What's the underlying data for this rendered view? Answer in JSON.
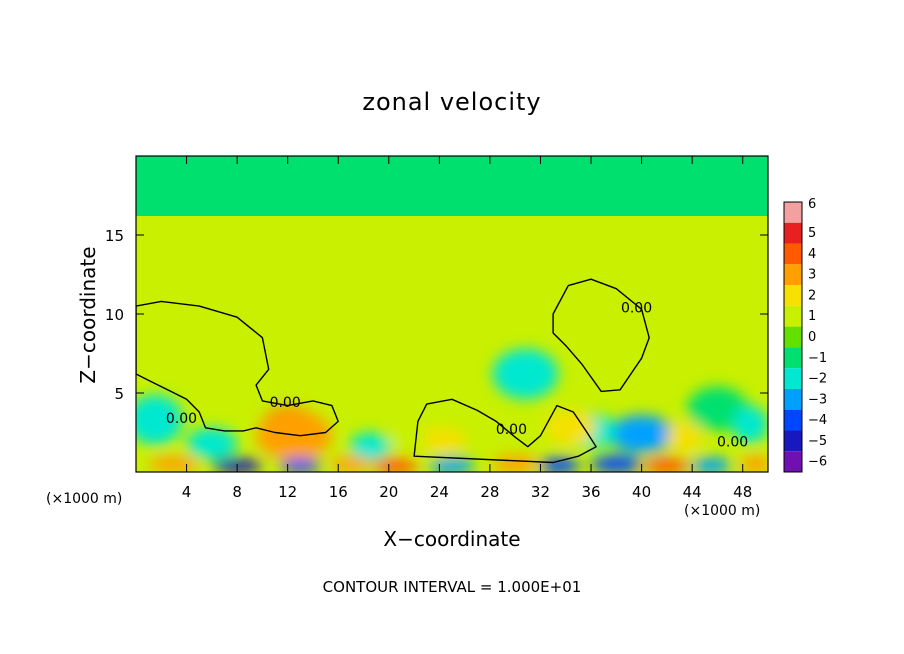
{
  "chart_data": {
    "type": "heatmap",
    "title": "zonal velocity",
    "xlabel": "X−coordinate",
    "ylabel": "Z−coordinate",
    "x_units": "(×1000 m)",
    "xlim": [
      0,
      50
    ],
    "ylim": [
      0,
      20
    ],
    "x_ticks": [
      4,
      8,
      12,
      16,
      20,
      24,
      28,
      32,
      36,
      40,
      44,
      48
    ],
    "y_ticks": [
      5,
      10,
      15
    ],
    "footer": "CONTOUR INTERVAL = 1.000E+01",
    "colorbar": {
      "levels": [
        6,
        5,
        4,
        3,
        2,
        1,
        0,
        -1,
        -2,
        -3,
        -4,
        -5,
        -6
      ],
      "labels": [
        "6",
        "5",
        "4",
        "3",
        "2",
        "1",
        "0",
        "−1",
        "−2",
        "−3",
        "−4",
        "−5",
        "−6"
      ],
      "colors": [
        "#f2a0a0",
        "#e82020",
        "#ff5a00",
        "#ffa000",
        "#f5e000",
        "#c8f000",
        "#64e000",
        "#00e06e",
        "#00e8d0",
        "#00a0ff",
        "#0046ff",
        "#1818c0",
        "#7010b0"
      ]
    },
    "contour_labels": [
      {
        "text": "0.00",
        "x": 3.6,
        "y": 3.1
      },
      {
        "text": "0.00",
        "x": 11.8,
        "y": 4.1
      },
      {
        "text": "0.00",
        "x": 29.7,
        "y": 2.4
      },
      {
        "text": "0.00",
        "x": 39.6,
        "y": 10.1
      },
      {
        "text": "0.00",
        "x": 47.2,
        "y": 1.6
      }
    ],
    "features": [
      {
        "x": 12.2,
        "y": 3.0,
        "v": 4.2,
        "rx": 2.2,
        "ry": 1.1
      },
      {
        "x": 12.5,
        "y": 2.3,
        "v": 2.5,
        "rx": 3.0,
        "ry": 1.6
      },
      {
        "x": 1.5,
        "y": 3.3,
        "v": -2.2,
        "rx": 2.2,
        "ry": 1.6
      },
      {
        "x": 6.0,
        "y": 1.8,
        "v": -2.5,
        "rx": 2.0,
        "ry": 1.0
      },
      {
        "x": 30.8,
        "y": 6.2,
        "v": -1.6,
        "rx": 2.6,
        "ry": 1.6
      },
      {
        "x": 40.0,
        "y": 2.4,
        "v": -2.6,
        "rx": 2.6,
        "ry": 1.2
      },
      {
        "x": 36.0,
        "y": 2.6,
        "v": -2.3,
        "rx": 2.0,
        "ry": 1.1
      },
      {
        "x": 46.0,
        "y": 4.0,
        "v": -1.4,
        "rx": 2.4,
        "ry": 1.4
      },
      {
        "x": 34.4,
        "y": 2.8,
        "v": 1.6,
        "rx": 2.0,
        "ry": 1.1
      },
      {
        "x": 24.0,
        "y": 2.0,
        "v": 1.8,
        "rx": 2.2,
        "ry": 0.8
      },
      {
        "x": 18.5,
        "y": 1.6,
        "v": -1.8,
        "rx": 1.6,
        "ry": 0.9
      },
      {
        "x": 21.5,
        "y": 2.0,
        "v": 1.2,
        "rx": 1.5,
        "ry": 0.8
      },
      {
        "x": 43.4,
        "y": 2.2,
        "v": 1.8,
        "rx": 1.4,
        "ry": 1.0
      },
      {
        "x": 48.6,
        "y": 3.0,
        "v": -1.8,
        "rx": 1.4,
        "ry": 1.2
      },
      {
        "x": 3.0,
        "y": 0.5,
        "v": 3.0,
        "rx": 2.0,
        "ry": 0.5
      },
      {
        "x": 8.0,
        "y": 0.4,
        "v": -5.0,
        "rx": 2.0,
        "ry": 0.45
      },
      {
        "x": 13.0,
        "y": 0.4,
        "v": -4.5,
        "rx": 1.6,
        "ry": 0.45
      },
      {
        "x": 17.0,
        "y": 0.5,
        "v": 2.8,
        "rx": 1.6,
        "ry": 0.5
      },
      {
        "x": 20.5,
        "y": 0.4,
        "v": 3.8,
        "rx": 1.8,
        "ry": 0.5
      },
      {
        "x": 25.0,
        "y": 0.4,
        "v": -3.2,
        "rx": 1.8,
        "ry": 0.5
      },
      {
        "x": 30.0,
        "y": 0.5,
        "v": 3.0,
        "rx": 1.8,
        "ry": 0.55
      },
      {
        "x": 33.5,
        "y": 0.4,
        "v": -4.0,
        "rx": 1.6,
        "ry": 0.5
      },
      {
        "x": 38.0,
        "y": 0.5,
        "v": -3.8,
        "rx": 2.0,
        "ry": 0.55
      },
      {
        "x": 42.0,
        "y": 0.4,
        "v": 3.6,
        "rx": 1.8,
        "ry": 0.5
      },
      {
        "x": 45.5,
        "y": 0.4,
        "v": -3.2,
        "rx": 1.6,
        "ry": 0.5
      },
      {
        "x": 49.0,
        "y": 0.5,
        "v": 3.4,
        "rx": 1.2,
        "ry": 0.55
      }
    ],
    "contours": [
      [
        [
          0,
          10.5
        ],
        [
          2,
          10.8
        ],
        [
          5,
          10.5
        ],
        [
          8,
          9.8
        ],
        [
          10,
          8.5
        ],
        [
          10.5,
          6.5
        ],
        [
          9.5,
          5.5
        ],
        [
          10,
          4.5
        ],
        [
          12,
          4.2
        ],
        [
          14,
          4.5
        ],
        [
          15.5,
          4.2
        ],
        [
          16,
          3.2
        ],
        [
          15,
          2.5
        ],
        [
          13,
          2.3
        ],
        [
          11,
          2.5
        ],
        [
          9.5,
          2.8
        ],
        [
          8.5,
          2.6
        ],
        [
          7,
          2.6
        ],
        [
          5.5,
          2.8
        ],
        [
          5,
          3.8
        ],
        [
          4,
          4.6
        ],
        [
          2.5,
          5.2
        ],
        [
          1,
          5.8
        ],
        [
          0,
          6.2
        ]
      ],
      [
        [
          33,
          10
        ],
        [
          34.2,
          11.8
        ],
        [
          36,
          12.2
        ],
        [
          38,
          11.6
        ],
        [
          40,
          10.3
        ],
        [
          40.6,
          8.5
        ],
        [
          40,
          7.2
        ],
        [
          38.3,
          5.2
        ],
        [
          36.8,
          5.1
        ],
        [
          35.3,
          6.8
        ],
        [
          34,
          8
        ],
        [
          33,
          8.8
        ]
      ],
      [
        [
          22,
          1.0
        ],
        [
          22.3,
          3.2
        ],
        [
          23,
          4.3
        ],
        [
          25,
          4.6
        ],
        [
          27,
          3.9
        ],
        [
          28.5,
          3.2
        ],
        [
          30,
          2.2
        ],
        [
          31,
          1.6
        ],
        [
          32,
          2.3
        ],
        [
          33.3,
          4.2
        ],
        [
          34.6,
          3.8
        ],
        [
          35.6,
          2.6
        ],
        [
          36.4,
          1.6
        ],
        [
          35,
          1.0
        ],
        [
          33,
          0.6
        ]
      ]
    ]
  }
}
